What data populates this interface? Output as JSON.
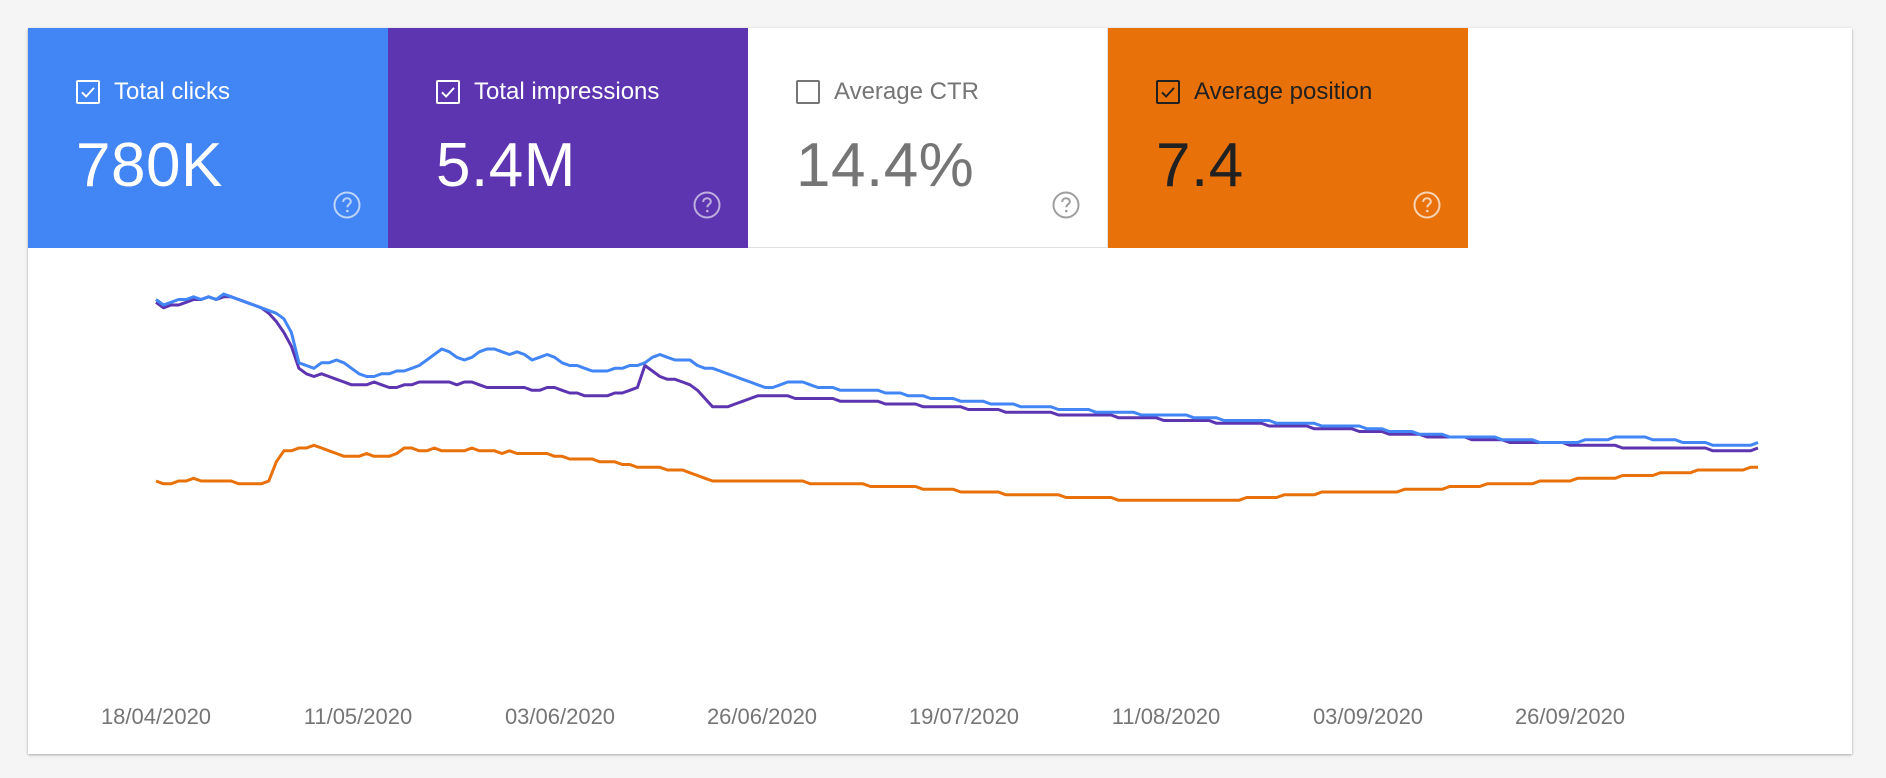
{
  "tiles": [
    {
      "label": "Total clicks",
      "value": "780K",
      "checked": true,
      "bg": "#4285f4",
      "icon": "help-circle-icon"
    },
    {
      "label": "Total impressions",
      "value": "5.4M",
      "checked": true,
      "bg": "#5e35b1",
      "icon": "help-circle-icon"
    },
    {
      "label": "Average CTR",
      "value": "14.4%",
      "checked": false,
      "bg": "#ffffff",
      "icon": "help-circle-icon"
    },
    {
      "label": "Average position",
      "value": "7.4",
      "checked": true,
      "bg": "#e8710a",
      "icon": "help-circle-icon"
    }
  ],
  "chart_data": {
    "type": "line",
    "x_tick_labels": [
      "18/04/2020",
      "11/05/2020",
      "03/06/2020",
      "26/06/2020",
      "19/07/2020",
      "11/08/2020",
      "03/09/2020",
      "26/09/2020"
    ],
    "y_axis_visible": false,
    "grid": false,
    "legend": "none",
    "series": [
      {
        "color": "#4285f4",
        "values": [
          94,
          92,
          93,
          94,
          94,
          95,
          94,
          95,
          94,
          96,
          95,
          94,
          93,
          92,
          91,
          90,
          89,
          87,
          82,
          71,
          70,
          69,
          71,
          71,
          72,
          71,
          69,
          67,
          66,
          66,
          67,
          67,
          68,
          68,
          69,
          70,
          72,
          74,
          76,
          75,
          73,
          72,
          73,
          75,
          76,
          76,
          75,
          74,
          75,
          74,
          72,
          73,
          74,
          73,
          71,
          70,
          70,
          69,
          68,
          68,
          68,
          69,
          69,
          70,
          70,
          71,
          73,
          74,
          73,
          72,
          72,
          72,
          70,
          69,
          69,
          68,
          67,
          66,
          65,
          64,
          63,
          62,
          62,
          63,
          64,
          64,
          64,
          63,
          62,
          62,
          62,
          61,
          61,
          61,
          61,
          61,
          61,
          60,
          60,
          60,
          59,
          59,
          59,
          58,
          58,
          58,
          58,
          57,
          57,
          57,
          57,
          56,
          56,
          56,
          56,
          55,
          55,
          55,
          55,
          55,
          54,
          54,
          54,
          54,
          54,
          53,
          53,
          53,
          53,
          53,
          53,
          52,
          52,
          52,
          52,
          52,
          52,
          52,
          51,
          51,
          51,
          51,
          50,
          50,
          50,
          50,
          50,
          50,
          50,
          49,
          49,
          49,
          49,
          49,
          49,
          48,
          48,
          48,
          48,
          48,
          48,
          47,
          47,
          47,
          46,
          46,
          46,
          46,
          45,
          45,
          45,
          45,
          44,
          44,
          44,
          44,
          44,
          44,
          44,
          43,
          43,
          43,
          43,
          43,
          42,
          42,
          42,
          42,
          42,
          42,
          43,
          43,
          43,
          43,
          44,
          44,
          44,
          44,
          44,
          43,
          43,
          43,
          43,
          42,
          42,
          42,
          42,
          41,
          41,
          41,
          41,
          41,
          41,
          42
        ]
      },
      {
        "color": "#5e35b1",
        "values": [
          93,
          91,
          92,
          92,
          93,
          94,
          94,
          95,
          94,
          95,
          95,
          94,
          93,
          92,
          91,
          89,
          86,
          82,
          77,
          69,
          67,
          66,
          67,
          66,
          65,
          64,
          63,
          63,
          63,
          64,
          63,
          62,
          62,
          63,
          63,
          64,
          64,
          64,
          64,
          64,
          63,
          64,
          64,
          63,
          62,
          62,
          62,
          62,
          62,
          62,
          61,
          61,
          62,
          62,
          61,
          60,
          60,
          59,
          59,
          59,
          59,
          60,
          60,
          61,
          62,
          70,
          68,
          66,
          65,
          65,
          64,
          63,
          61,
          58,
          55,
          55,
          55,
          56,
          57,
          58,
          59,
          59,
          59,
          59,
          59,
          58,
          58,
          58,
          58,
          58,
          58,
          57,
          57,
          57,
          57,
          57,
          57,
          56,
          56,
          56,
          56,
          56,
          55,
          55,
          55,
          55,
          55,
          55,
          54,
          54,
          54,
          54,
          54,
          53,
          53,
          53,
          53,
          53,
          53,
          53,
          52,
          52,
          52,
          52,
          52,
          52,
          52,
          52,
          51,
          51,
          51,
          51,
          51,
          51,
          50,
          50,
          50,
          50,
          50,
          50,
          50,
          49,
          49,
          49,
          49,
          49,
          49,
          49,
          48,
          48,
          48,
          48,
          48,
          48,
          47,
          47,
          47,
          47,
          47,
          47,
          46,
          46,
          46,
          46,
          45,
          45,
          45,
          45,
          45,
          44,
          44,
          44,
          44,
          44,
          44,
          43,
          43,
          43,
          43,
          43,
          42,
          42,
          42,
          42,
          42,
          42,
          42,
          42,
          41,
          41,
          41,
          41,
          41,
          41,
          41,
          40,
          40,
          40,
          40,
          40,
          40,
          40,
          40,
          40,
          40,
          40,
          40,
          39,
          39,
          39,
          39,
          39,
          39,
          40
        ]
      },
      {
        "color": "#e8710a",
        "values": [
          28,
          27,
          27,
          28,
          28,
          29,
          28,
          28,
          28,
          28,
          28,
          27,
          27,
          27,
          27,
          28,
          35,
          39,
          39,
          40,
          40,
          41,
          40,
          39,
          38,
          37,
          37,
          37,
          38,
          37,
          37,
          37,
          38,
          40,
          40,
          39,
          39,
          40,
          39,
          39,
          39,
          39,
          40,
          39,
          39,
          39,
          38,
          39,
          38,
          38,
          38,
          38,
          38,
          37,
          37,
          36,
          36,
          36,
          36,
          35,
          35,
          35,
          34,
          34,
          33,
          33,
          33,
          33,
          32,
          32,
          32,
          31,
          30,
          29,
          28,
          28,
          28,
          28,
          28,
          28,
          28,
          28,
          28,
          28,
          28,
          28,
          28,
          27,
          27,
          27,
          27,
          27,
          27,
          27,
          27,
          26,
          26,
          26,
          26,
          26,
          26,
          26,
          25,
          25,
          25,
          25,
          25,
          24,
          24,
          24,
          24,
          24,
          24,
          23,
          23,
          23,
          23,
          23,
          23,
          23,
          23,
          22,
          22,
          22,
          22,
          22,
          22,
          22,
          21,
          21,
          21,
          21,
          21,
          21,
          21,
          21,
          21,
          21,
          21,
          21,
          21,
          21,
          21,
          21,
          21,
          22,
          22,
          22,
          22,
          22,
          23,
          23,
          23,
          23,
          23,
          24,
          24,
          24,
          24,
          24,
          24,
          24,
          24,
          24,
          24,
          24,
          25,
          25,
          25,
          25,
          25,
          25,
          26,
          26,
          26,
          26,
          26,
          27,
          27,
          27,
          27,
          27,
          27,
          27,
          28,
          28,
          28,
          28,
          28,
          29,
          29,
          29,
          29,
          29,
          29,
          30,
          30,
          30,
          30,
          30,
          31,
          31,
          31,
          31,
          31,
          32,
          32,
          32,
          32,
          32,
          32,
          32,
          33,
          33
        ]
      }
    ]
  }
}
